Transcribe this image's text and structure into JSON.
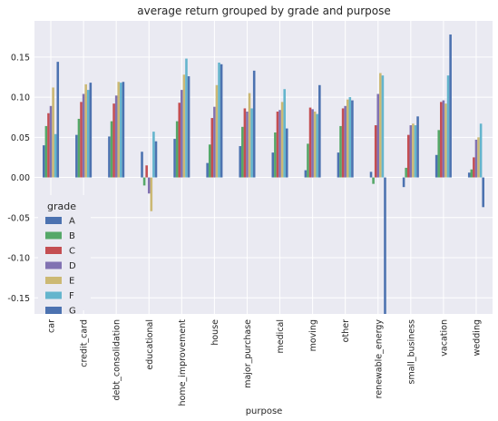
{
  "chart_data": {
    "type": "bar",
    "title": "average return grouped by grade and purpose",
    "xlabel": "purpose",
    "ylabel": "",
    "ylim": [
      -0.17,
      0.195
    ],
    "yticks": [
      0.15,
      0.1,
      0.05,
      0.0,
      -0.05,
      -0.1,
      -0.15
    ],
    "ytick_labels": [
      "0.15",
      "0.10",
      "0.05",
      "0.00",
      "-0.05",
      "-0.10",
      "-0.15"
    ],
    "grid": true,
    "legend": {
      "title": "grade",
      "placement": "center-left"
    },
    "categories": [
      "car",
      "credit_card",
      "debt_consolidation",
      "educational",
      "home_improvement",
      "house",
      "major_purchase",
      "medical",
      "moving",
      "other",
      "renewable_energy",
      "small_business",
      "vacation",
      "wedding"
    ],
    "series": [
      {
        "name": "A",
        "color": "#4c72b0",
        "values": [
          0.04,
          0.053,
          0.051,
          0.032,
          0.048,
          0.018,
          0.039,
          0.031,
          0.009,
          0.031,
          0.007,
          -0.012,
          0.028,
          0.006
        ]
      },
      {
        "name": "B",
        "color": "#55a868",
        "values": [
          0.064,
          0.073,
          0.07,
          -0.01,
          0.07,
          0.041,
          0.063,
          0.056,
          0.042,
          0.064,
          -0.008,
          0.012,
          0.059,
          0.01
        ]
      },
      {
        "name": "C",
        "color": "#c44e52",
        "values": [
          0.08,
          0.094,
          0.092,
          0.015,
          0.093,
          0.074,
          0.086,
          0.082,
          0.087,
          0.086,
          0.065,
          0.053,
          0.094,
          0.025
        ]
      },
      {
        "name": "D",
        "color": "#8172b2",
        "values": [
          0.089,
          0.104,
          0.102,
          -0.02,
          0.109,
          0.088,
          0.082,
          0.084,
          0.085,
          0.089,
          0.104,
          0.065,
          0.096,
          0.047
        ]
      },
      {
        "name": "E",
        "color": "#ccb974",
        "values": [
          0.112,
          0.116,
          0.119,
          -0.042,
          0.128,
          0.115,
          0.105,
          0.094,
          0.082,
          0.097,
          0.13,
          0.067,
          0.092,
          0.05
        ]
      },
      {
        "name": "F",
        "color": "#64b5cd",
        "values": [
          0.054,
          0.109,
          0.118,
          0.057,
          0.148,
          0.143,
          0.086,
          0.11,
          0.079,
          0.1,
          0.127,
          0.065,
          0.127,
          0.067
        ]
      },
      {
        "name": "G",
        "color": "#4c72b0",
        "values": [
          0.144,
          0.118,
          0.119,
          0.045,
          0.126,
          0.141,
          0.133,
          0.061,
          0.115,
          0.096,
          -0.17,
          0.076,
          0.178,
          -0.037
        ]
      }
    ]
  }
}
